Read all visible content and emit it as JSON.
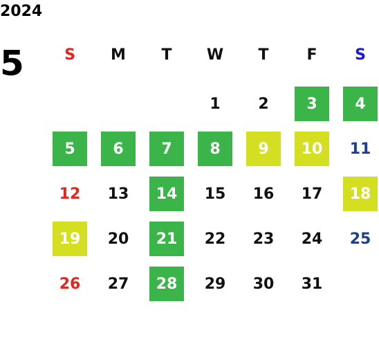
{
  "year": 2024,
  "month": 5,
  "weekdays": [
    "S",
    "M",
    "T",
    "W",
    "T",
    "F",
    "S"
  ],
  "weekday_colors": [
    "#e8211b",
    "#111111",
    "#111111",
    "#111111",
    "#111111",
    "#111111",
    "#1a1ad6"
  ],
  "day_colors": [
    "#e0281f",
    "#111111",
    "#111111",
    "#111111",
    "#111111",
    "#111111",
    "#1e3f8f"
  ],
  "highlight_colors": {
    "green": "#3bb54a",
    "yellow": "#d5df22"
  },
  "days": [
    {
      "day": 1
    },
    {
      "day": 2
    },
    {
      "day": 3,
      "highlight": "green"
    },
    {
      "day": 4,
      "highlight": "green"
    },
    {
      "day": 5,
      "highlight": "green"
    },
    {
      "day": 6,
      "highlight": "green"
    },
    {
      "day": 7,
      "highlight": "green"
    },
    {
      "day": 8,
      "highlight": "green"
    },
    {
      "day": 9,
      "highlight": "yellow"
    },
    {
      "day": 10,
      "highlight": "yellow"
    },
    {
      "day": 11
    },
    {
      "day": 12
    },
    {
      "day": 13
    },
    {
      "day": 14,
      "highlight": "green"
    },
    {
      "day": 15
    },
    {
      "day": 16
    },
    {
      "day": 17
    },
    {
      "day": 18,
      "highlight": "yellow"
    },
    {
      "day": 19,
      "highlight": "yellow"
    },
    {
      "day": 20
    },
    {
      "day": 21,
      "highlight": "green"
    },
    {
      "day": 22
    },
    {
      "day": 23
    },
    {
      "day": 24
    },
    {
      "day": 25
    },
    {
      "day": 26
    },
    {
      "day": 27
    },
    {
      "day": 28,
      "highlight": "green"
    },
    {
      "day": 29
    },
    {
      "day": 30
    },
    {
      "day": 31
    }
  ]
}
